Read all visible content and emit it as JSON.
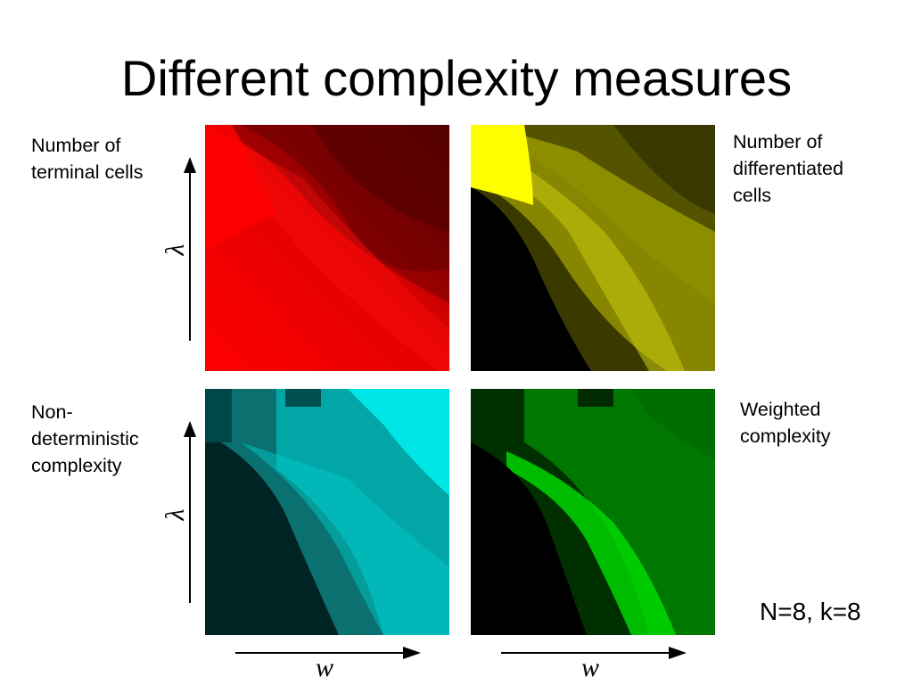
{
  "slide": {
    "title": "Different complexity measures",
    "note": "N=8, k=8"
  },
  "panels": [
    {
      "id": "terminal",
      "label_lines": [
        "Number of",
        "terminal cells"
      ],
      "color": "#ff0000",
      "dark": "#5a0000"
    },
    {
      "id": "differentiated",
      "label_lines": [
        "Number of",
        "differentiated",
        "cells"
      ],
      "color": "#e6e600",
      "dark": "#3a3a00"
    },
    {
      "id": "nondeterministic",
      "label_lines": [
        "Non-",
        "deterministic",
        "complexity"
      ],
      "color": "#00e5e5",
      "dark": "#002424"
    },
    {
      "id": "weighted",
      "label_lines": [
        "Weighted",
        "complexity"
      ],
      "color": "#00e000",
      "dark": "#003000"
    }
  ],
  "axes": {
    "y_label": "λ",
    "x_label": "w"
  },
  "colors": {
    "axis_arrow": "#000000"
  }
}
